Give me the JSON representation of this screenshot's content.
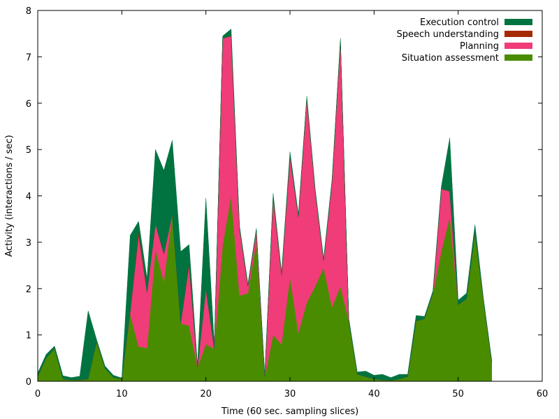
{
  "chart_data": {
    "type": "area",
    "stacked": true,
    "title": "",
    "xlabel": "Time (60 sec. sampling slices)",
    "ylabel": "Activity (interactions / sec)",
    "xlim": [
      0,
      60
    ],
    "ylim": [
      0,
      8
    ],
    "xticks": [
      0,
      10,
      20,
      30,
      40,
      50,
      60
    ],
    "yticks": [
      0,
      1,
      2,
      3,
      4,
      5,
      6,
      7,
      8
    ],
    "grid": false,
    "legend_position": "top-right",
    "x": [
      0,
      1,
      2,
      3,
      4,
      5,
      6,
      7,
      8,
      9,
      10,
      11,
      12,
      13,
      14,
      15,
      16,
      17,
      18,
      19,
      20,
      21,
      22,
      23,
      24,
      25,
      26,
      27,
      28,
      29,
      30,
      31,
      32,
      33,
      34,
      35,
      36,
      37,
      38,
      39,
      40,
      41,
      42,
      43,
      44,
      45,
      46,
      47,
      48,
      49,
      50,
      51,
      52,
      53,
      54
    ],
    "series": [
      {
        "name": "Situation assessment",
        "color": "#4a8c00",
        "values": [
          0.1,
          0.5,
          0.7,
          0.05,
          0.03,
          0.03,
          0.05,
          0.85,
          0.28,
          0.08,
          0.05,
          1.45,
          0.75,
          0.72,
          2.85,
          2.15,
          3.6,
          1.25,
          1.2,
          0.3,
          0.8,
          0.7,
          2.95,
          4.0,
          1.85,
          1.9,
          3.0,
          0.1,
          1.0,
          0.8,
          2.25,
          1.05,
          1.7,
          2.05,
          2.45,
          1.6,
          2.05,
          1.3,
          0.15,
          0.1,
          0.05,
          0.03,
          0.02,
          0.05,
          0.1,
          1.3,
          1.35,
          1.9,
          2.8,
          3.55,
          1.65,
          1.78,
          3.2,
          1.75,
          0.4
        ]
      },
      {
        "name": "Planning",
        "color": "#f03c78",
        "values": [
          0,
          0,
          0,
          0,
          0,
          0,
          0,
          0,
          0,
          0,
          0,
          0.05,
          2.4,
          1.2,
          0.55,
          0.6,
          0,
          0,
          1.3,
          0,
          1.2,
          0,
          4.45,
          3.45,
          1.45,
          0.15,
          0.25,
          0,
          2.95,
          1.5,
          2.6,
          2.5,
          4.4,
          2.05,
          0.15,
          2.7,
          5.3,
          0,
          0,
          0,
          0,
          0,
          0,
          0,
          0,
          0,
          0,
          0,
          1.35,
          0.55,
          0,
          0,
          0,
          0,
          0
        ]
      },
      {
        "name": "Speech understanding",
        "color": "#a52a00",
        "values": [
          0,
          0,
          0,
          0,
          0,
          0,
          0,
          0,
          0,
          0,
          0,
          0,
          0.1,
          0,
          0,
          0,
          0,
          0,
          0.05,
          0,
          0,
          0,
          0,
          0,
          0,
          0,
          0,
          0,
          0.05,
          0,
          0,
          0,
          0,
          0,
          0,
          0,
          0,
          0,
          0,
          0,
          0,
          0,
          0,
          0,
          0,
          0,
          0,
          0,
          0,
          0,
          0,
          0,
          0,
          0,
          0
        ]
      },
      {
        "name": "Execution control",
        "color": "#007341",
        "values": [
          0.08,
          0.08,
          0.06,
          0.07,
          0.05,
          0.08,
          1.47,
          0.05,
          0.05,
          0.05,
          0.02,
          1.65,
          0.2,
          0.3,
          1.6,
          1.8,
          1.6,
          1.55,
          0.4,
          0.05,
          1.95,
          0.1,
          0.05,
          0.15,
          0.05,
          0.05,
          0.05,
          0.05,
          0.05,
          0.05,
          0.1,
          0.05,
          0.05,
          0.05,
          0.05,
          0.05,
          0.05,
          0.05,
          0.05,
          0.12,
          0.08,
          0.12,
          0.06,
          0.1,
          0.05,
          0.12,
          0.05,
          0.05,
          0.05,
          1.15,
          0.1,
          0.12,
          0.18,
          0.05,
          0.05
        ]
      }
    ],
    "legend_order": [
      "Execution control",
      "Speech understanding",
      "Planning",
      "Situation assessment"
    ]
  }
}
